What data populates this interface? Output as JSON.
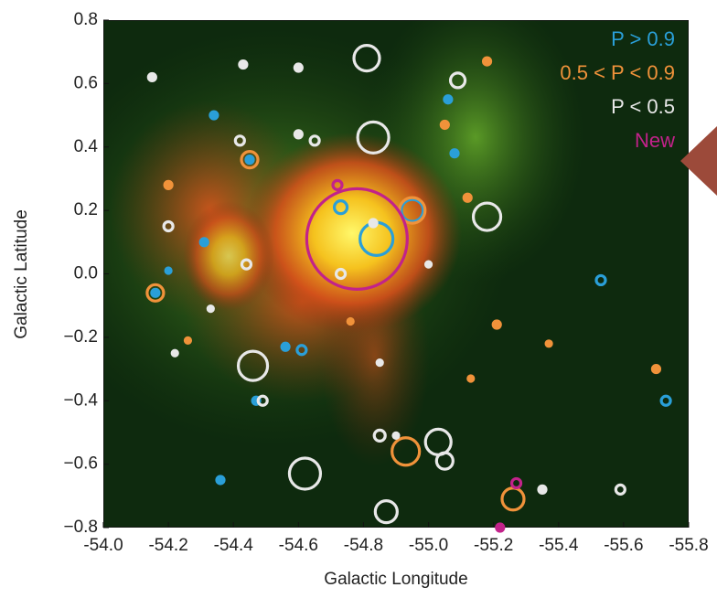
{
  "chart_data": {
    "type": "scatter",
    "x_label": "Galactic Longitude",
    "y_label": "Galactic Latitude",
    "xlim": [
      -54.0,
      -55.8
    ],
    "ylim": [
      -0.8,
      0.8
    ],
    "xticks": [
      {
        "value": -54.0,
        "label": "-54.0"
      },
      {
        "value": -54.2,
        "label": "-54.2"
      },
      {
        "value": -54.4,
        "label": "-54.4"
      },
      {
        "value": -54.6,
        "label": "-54.6"
      },
      {
        "value": -54.8,
        "label": "-54.8"
      },
      {
        "value": -55.0,
        "label": "-55.0"
      },
      {
        "value": -55.2,
        "label": "-55.2"
      },
      {
        "value": -55.4,
        "label": "-55.4"
      },
      {
        "value": -55.6,
        "label": "-55.6"
      },
      {
        "value": -55.8,
        "label": "-55.8"
      }
    ],
    "yticks": [
      {
        "value": -0.8,
        "label": "−0.8"
      },
      {
        "value": -0.6,
        "label": "−0.6"
      },
      {
        "value": -0.4,
        "label": "−0.4"
      },
      {
        "value": -0.2,
        "label": "−0.2"
      },
      {
        "value": 0.0,
        "label": "0.0"
      },
      0.2,
      0.4,
      0.6,
      0.8
    ],
    "series": [
      {
        "name": "P > 0.9",
        "color": "#2a9fd8",
        "x": [
          -54.34,
          -55.06,
          -55.08,
          -54.45,
          -54.73,
          -54.95,
          -54.84,
          -54.31,
          -54.2,
          -54.16,
          -54.56,
          -54.61,
          -54.47,
          -54.36,
          -55.53,
          -55.73
        ],
        "y": [
          0.5,
          0.55,
          0.38,
          0.36,
          0.21,
          0.2,
          0.11,
          0.1,
          0.01,
          -0.06,
          -0.23,
          -0.24,
          -0.4,
          -0.65,
          -0.02,
          -0.4
        ],
        "sizes": [
          4,
          4,
          4,
          4,
          7,
          12,
          18,
          4,
          3,
          4,
          4,
          5,
          4,
          4,
          5,
          5
        ]
      },
      {
        "name": "0.5 < P < 0.9",
        "color": "#f0923a",
        "x": [
          -55.18,
          -55.05,
          -54.45,
          -54.2,
          -55.12,
          -54.95,
          -54.16,
          -55.21,
          -55.37,
          -54.76,
          -55.7,
          -55.13,
          -54.93,
          -55.26,
          -54.26
        ],
        "y": [
          0.67,
          0.47,
          0.36,
          0.28,
          0.24,
          0.2,
          -0.06,
          -0.16,
          -0.22,
          -0.15,
          -0.3,
          -0.33,
          -0.56,
          -0.71,
          -0.21
        ],
        "sizes": [
          4,
          4,
          9,
          4,
          4,
          14,
          9,
          4,
          3,
          3,
          4,
          3,
          15,
          12,
          3
        ]
      },
      {
        "name": "P < 0.5",
        "color": "#e8e8e8",
        "x": [
          -54.15,
          -54.43,
          -54.6,
          -54.81,
          -55.09,
          -54.42,
          -54.6,
          -54.65,
          -54.83,
          -55.18,
          -54.2,
          -54.44,
          -54.73,
          -54.83,
          -55.0,
          -54.33,
          -54.22,
          -54.85,
          -54.46,
          -54.49,
          -54.85,
          -54.9,
          -55.03,
          -55.05,
          -54.62,
          -55.35,
          -55.59,
          -54.87
        ],
        "y": [
          0.62,
          0.66,
          0.65,
          0.68,
          0.61,
          0.42,
          0.44,
          0.42,
          0.43,
          0.18,
          0.15,
          0.03,
          0.0,
          0.16,
          0.03,
          -0.11,
          -0.25,
          -0.28,
          -0.29,
          -0.4,
          -0.51,
          -0.51,
          -0.53,
          -0.59,
          -0.63,
          -0.68,
          -0.68,
          -0.75
        ],
        "sizes": [
          4,
          4,
          4,
          14,
          8,
          5,
          4,
          5,
          17,
          15,
          5,
          5,
          5,
          4,
          3,
          3,
          3,
          3,
          16,
          5,
          6,
          3,
          14,
          9,
          17,
          4,
          5,
          12
        ]
      },
      {
        "name": "New",
        "color": "#c2228a",
        "x": [
          -54.78,
          -54.72,
          -55.27,
          -55.22
        ],
        "y": [
          0.11,
          0.28,
          -0.66,
          -0.8
        ],
        "sizes": [
          55,
          5,
          5,
          4
        ]
      }
    ]
  }
}
